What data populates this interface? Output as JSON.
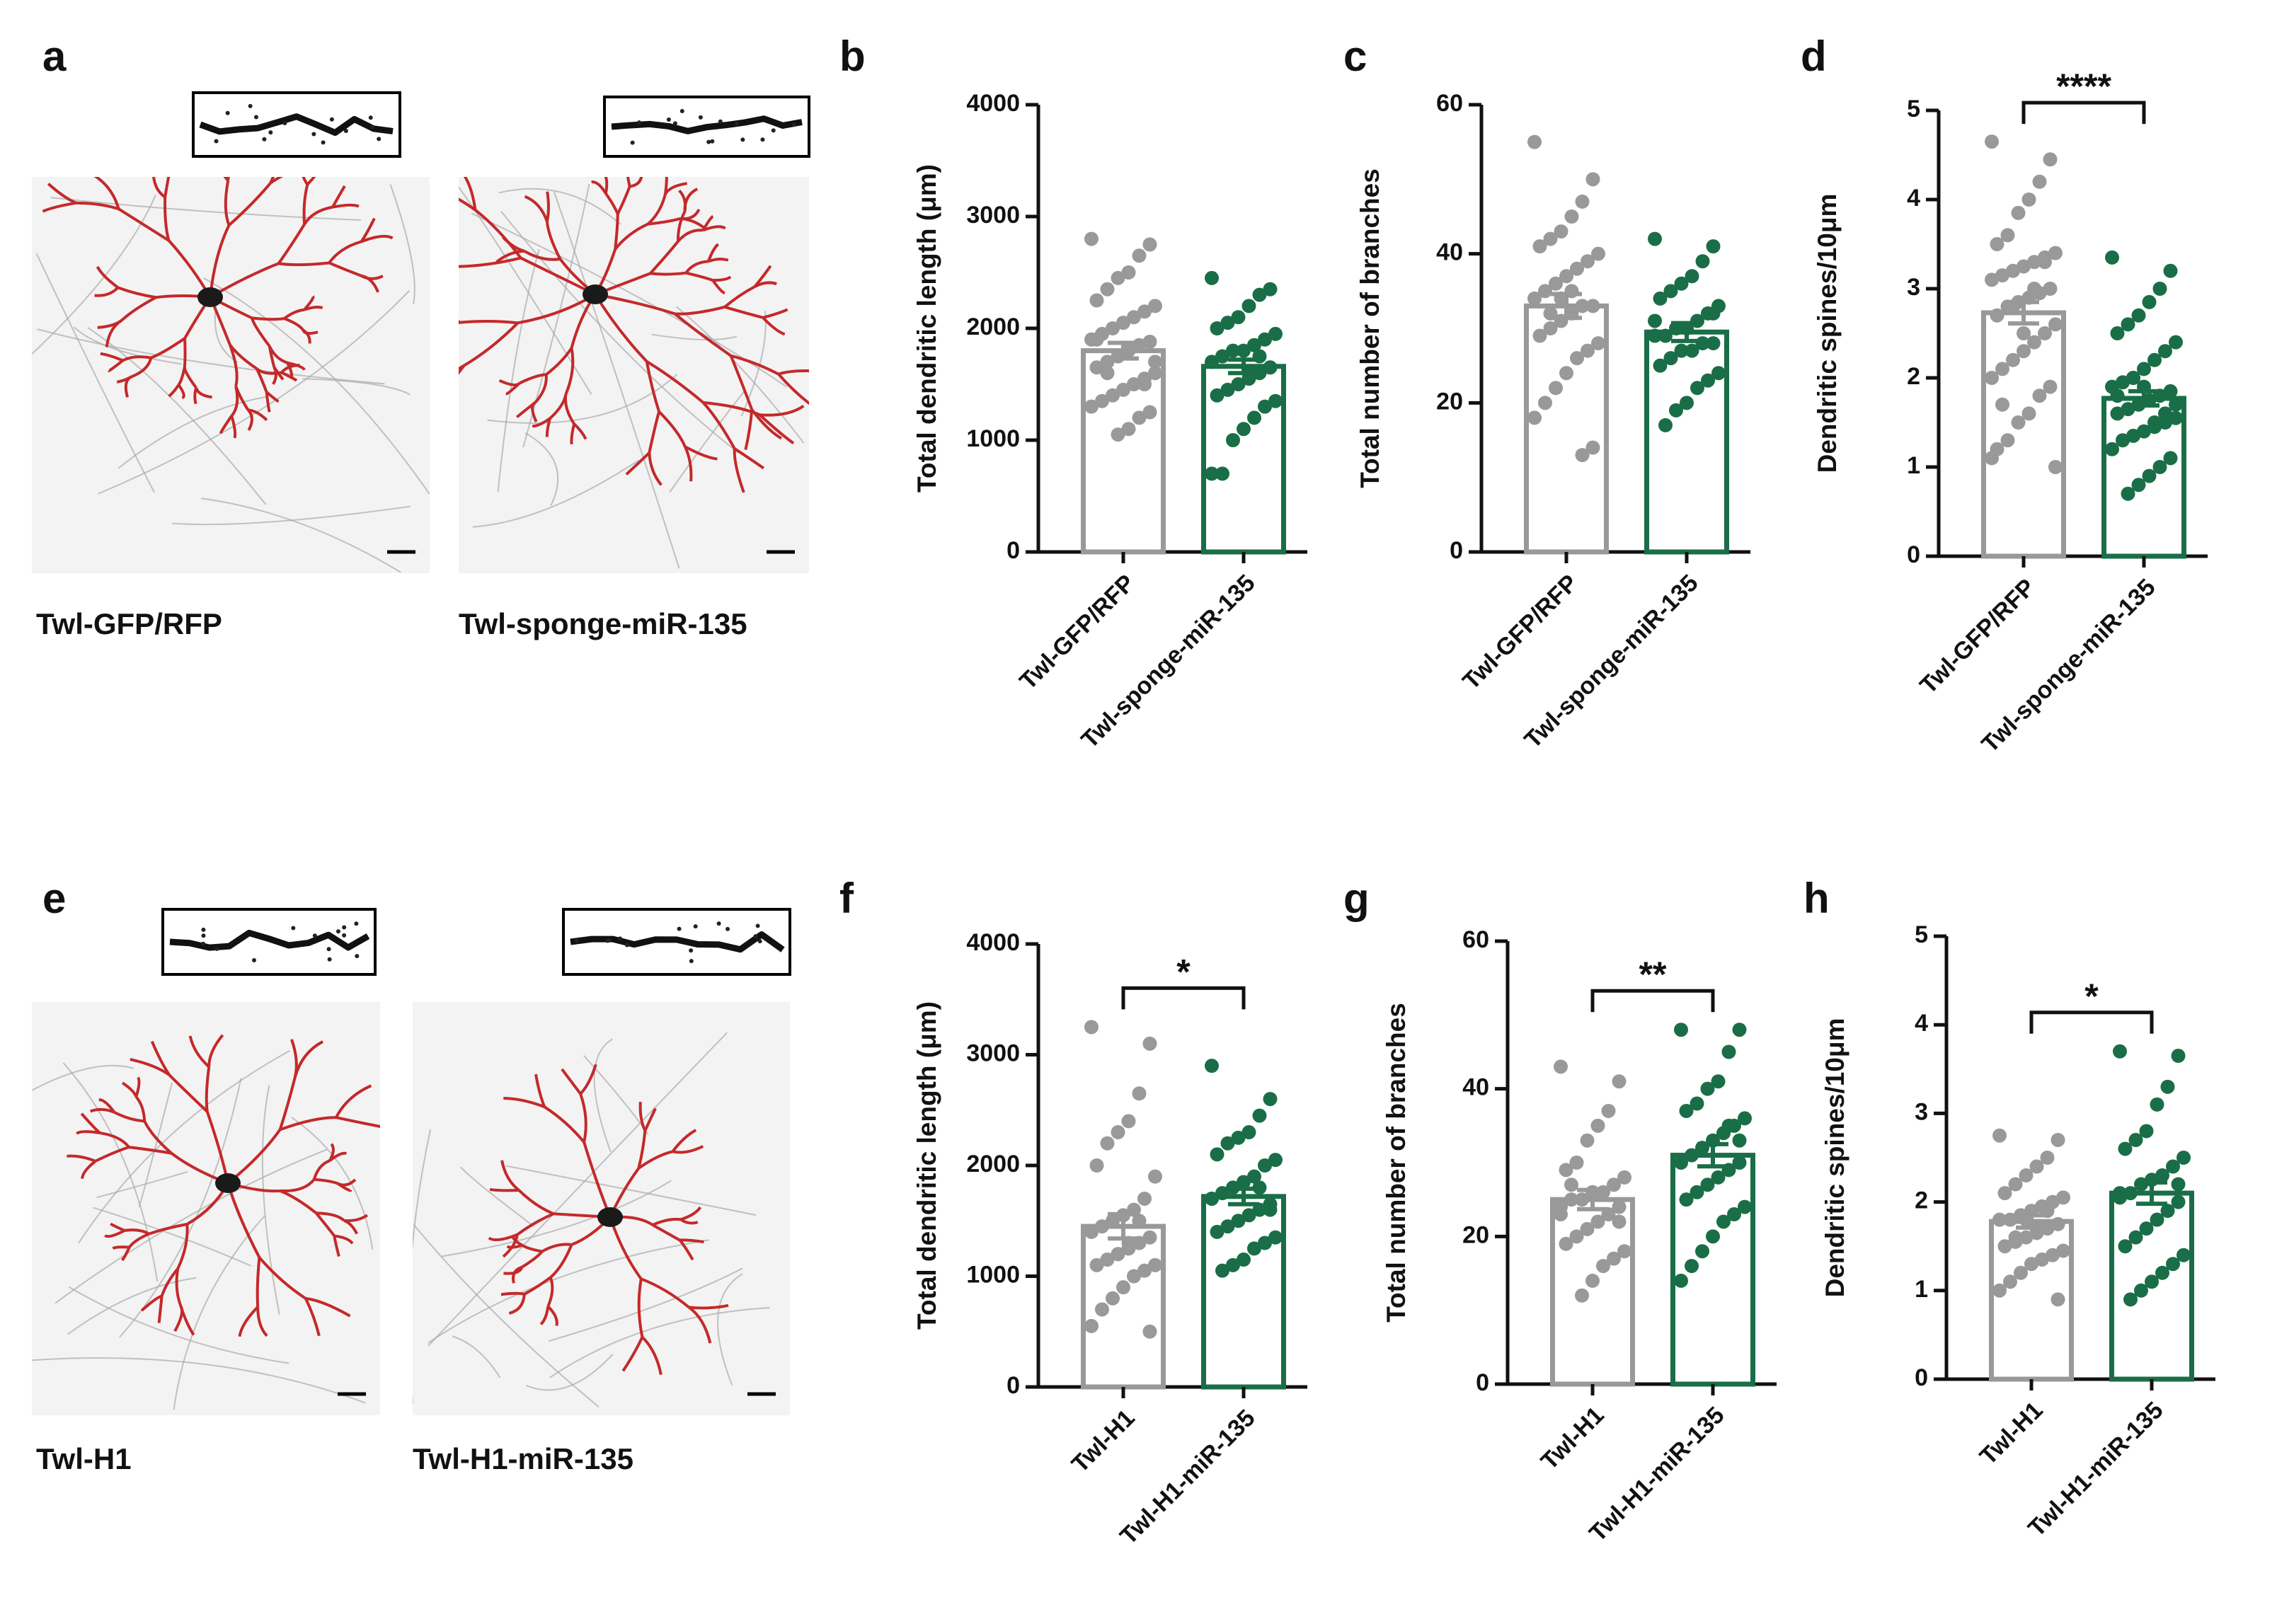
{
  "chart_data": [
    {
      "type": "bar",
      "panel": "b",
      "ylabel": "Total dendritic length (μm)",
      "categories": [
        "Twl-GFP/RFP",
        "Twl-sponge-miR-135"
      ],
      "values": [
        1800,
        1660
      ],
      "errors": [
        70,
        60
      ],
      "colors": [
        "#999999",
        "#1a6e47"
      ],
      "points": [
        [
          2800,
          2750,
          2650,
          2500,
          2450,
          2350,
          2250,
          2200,
          2150,
          2100,
          2050,
          2000,
          1950,
          1900,
          1880,
          1850,
          1800,
          1750,
          1700,
          1650,
          1600,
          1550,
          1500,
          1450,
          1400,
          1350,
          1300,
          1250,
          1200,
          1100,
          1050,
          1600,
          1900,
          1700,
          1500
        ],
        [
          2450,
          2350,
          2300,
          2200,
          2100,
          2050,
          2000,
          1950,
          1900,
          1850,
          1800,
          1800,
          1750,
          1700,
          1650,
          1600,
          1550,
          1500,
          1450,
          1400,
          1350,
          1300,
          1200,
          1100,
          1000,
          700,
          700,
          1650,
          1750,
          1600
        ]
      ],
      "ylim": [
        0,
        4000
      ],
      "yticks": [
        0,
        1000,
        2000,
        3000,
        4000
      ]
    },
    {
      "type": "bar",
      "panel": "c",
      "ylabel": "Total number of branches",
      "categories": [
        "Twl-GFP/RFP",
        "Twl-sponge-miR-135"
      ],
      "values": [
        33,
        29.5
      ],
      "errors": [
        1.6,
        1.2
      ],
      "colors": [
        "#999999",
        "#1a6e47"
      ],
      "points": [
        [
          55,
          50,
          47,
          45,
          43,
          42,
          41,
          40,
          39,
          38,
          37,
          36,
          35,
          34,
          33,
          33,
          32,
          31,
          30,
          29,
          28,
          27,
          26,
          24,
          22,
          20,
          18,
          14,
          13,
          35,
          34,
          32
        ],
        [
          42,
          41,
          39,
          37,
          36,
          35,
          34,
          33,
          32,
          31,
          30,
          30,
          29,
          29,
          28,
          28,
          27,
          27,
          26,
          25,
          24,
          23,
          22,
          20,
          19,
          17,
          31,
          32
        ]
      ],
      "ylim": [
        0,
        60
      ],
      "yticks": [
        0,
        20,
        40,
        60
      ]
    },
    {
      "type": "bar",
      "panel": "d",
      "ylabel": "Dendritic spines/10μm",
      "categories": [
        "Twl-GFP/RFP",
        "Twl-sponge-miR-135"
      ],
      "values": [
        2.73,
        1.77
      ],
      "errors": [
        0.12,
        0.08
      ],
      "colors": [
        "#999999",
        "#1a6e47"
      ],
      "points": [
        [
          4.65,
          4.45,
          4.2,
          4.0,
          3.85,
          3.6,
          3.5,
          3.4,
          3.35,
          3.3,
          3.25,
          3.2,
          3.15,
          3.1,
          3.0,
          2.95,
          2.9,
          2.85,
          2.8,
          2.7,
          2.6,
          2.5,
          2.4,
          2.3,
          2.2,
          2.1,
          2.0,
          1.9,
          1.8,
          1.6,
          1.5,
          1.3,
          1.2,
          1.0,
          3.3,
          3.0,
          2.5,
          2.8,
          1.7,
          1.1
        ],
        [
          3.35,
          3.2,
          3.0,
          2.85,
          2.7,
          2.6,
          2.5,
          2.4,
          2.3,
          2.2,
          2.1,
          2.0,
          1.95,
          1.9,
          1.85,
          1.8,
          1.75,
          1.7,
          1.65,
          1.6,
          1.55,
          1.5,
          1.45,
          1.4,
          1.35,
          1.3,
          1.2,
          1.1,
          1.0,
          0.9,
          0.8,
          0.7,
          1.8,
          1.7,
          1.6,
          1.5,
          1.9,
          2.0
        ]
      ],
      "ylim": [
        0,
        5
      ],
      "yticks": [
        0,
        1,
        2,
        3,
        4,
        5
      ],
      "annotation": "****"
    },
    {
      "type": "bar",
      "panel": "f",
      "ylabel": "Total dendritic length (μm)",
      "categories": [
        "Twl-H1",
        "Twl-H1-miR-135"
      ],
      "values": [
        1450,
        1720
      ],
      "errors": [
        110,
        70
      ],
      "colors": [
        "#999999",
        "#1a6e47"
      ],
      "points": [
        [
          3250,
          3100,
          2650,
          2400,
          2300,
          2200,
          2000,
          1900,
          1700,
          1600,
          1550,
          1500,
          1450,
          1400,
          1350,
          1300,
          1250,
          1200,
          1150,
          1100,
          1100,
          1050,
          1000,
          900,
          800,
          700,
          550,
          500,
          1500,
          1300,
          1200
        ],
        [
          2900,
          2600,
          2450,
          2300,
          2250,
          2200,
          2100,
          2050,
          2000,
          1900,
          1850,
          1800,
          1750,
          1700,
          1650,
          1600,
          1550,
          1500,
          1450,
          1400,
          1350,
          1300,
          1250,
          1150,
          1100,
          1050,
          1700,
          1600,
          1800
        ]
      ],
      "ylim": [
        0,
        4000
      ],
      "yticks": [
        0,
        1000,
        2000,
        3000,
        4000
      ],
      "annotation": "*"
    },
    {
      "type": "bar",
      "panel": "g",
      "ylabel": "Total number of branches",
      "categories": [
        "Twl-H1",
        "Twl-H1-miR-135"
      ],
      "values": [
        25,
        31
      ],
      "errors": [
        1.3,
        1.5
      ],
      "colors": [
        "#999999",
        "#1a6e47"
      ],
      "points": [
        [
          43,
          41,
          37,
          35,
          33,
          30,
          29,
          28,
          27,
          26,
          26,
          25,
          25,
          24,
          24,
          23,
          22,
          21,
          20,
          19,
          18,
          17,
          16,
          14,
          12,
          27,
          23,
          22
        ],
        [
          48,
          48,
          45,
          41,
          40,
          38,
          37,
          36,
          35,
          34,
          33,
          32,
          31,
          30,
          30,
          29,
          28,
          27,
          26,
          25,
          24,
          23,
          22,
          20,
          18,
          16,
          14,
          33,
          35
        ]
      ],
      "ylim": [
        0,
        60
      ],
      "yticks": [
        0,
        20,
        40,
        60
      ],
      "annotation": "**"
    },
    {
      "type": "bar",
      "panel": "h",
      "ylabel": "Dendritic spines/10μm",
      "categories": [
        "Twl-H1",
        "Twl-H1-miR-135"
      ],
      "values": [
        1.78,
        2.1
      ],
      "errors": [
        0.07,
        0.12
      ],
      "colors": [
        "#999999",
        "#1a6e47"
      ],
      "points": [
        [
          2.75,
          2.7,
          2.5,
          2.4,
          2.3,
          2.2,
          2.1,
          2.05,
          2.0,
          1.95,
          1.9,
          1.85,
          1.8,
          1.8,
          1.75,
          1.7,
          1.65,
          1.6,
          1.55,
          1.5,
          1.45,
          1.4,
          1.35,
          1.3,
          1.2,
          1.1,
          1.0,
          0.9,
          1.9,
          1.7,
          1.8,
          1.6
        ],
        [
          3.7,
          3.65,
          3.3,
          3.1,
          2.8,
          2.7,
          2.6,
          2.5,
          2.4,
          2.3,
          2.25,
          2.2,
          2.1,
          2.05,
          2.0,
          1.9,
          1.8,
          1.7,
          1.6,
          1.5,
          1.4,
          1.3,
          1.2,
          1.1,
          1.0,
          0.9,
          2.1,
          2.2
        ]
      ],
      "ylim": [
        0,
        5
      ],
      "yticks": [
        0,
        1,
        2,
        3,
        4,
        5
      ],
      "annotation": "*"
    }
  ],
  "images": [
    {
      "panel": "a",
      "labels": [
        "Twl-GFP/RFP",
        "Twl-sponge-miR-135"
      ]
    },
    {
      "panel": "e",
      "labels": [
        "Twl-H1",
        "Twl-H1-miR-135"
      ]
    }
  ]
}
